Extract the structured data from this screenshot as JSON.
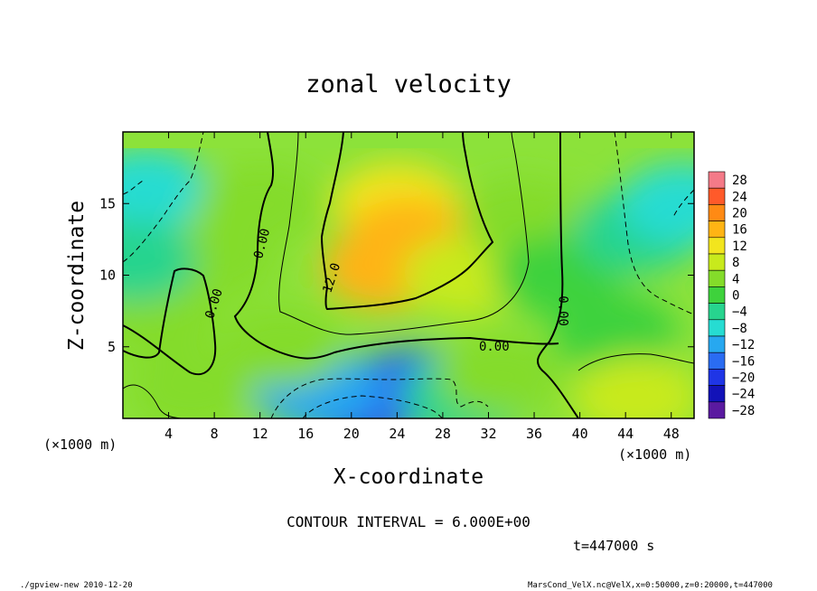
{
  "chart_data": {
    "type": "heatmap",
    "title": "zonal velocity",
    "xlabel": "X-coordinate",
    "ylabel": "Z-coordinate",
    "xunit_left": "(×1000 m)",
    "xunit_right": "(×1000 m)",
    "xlim": [
      0,
      50
    ],
    "ylim": [
      0,
      20
    ],
    "xticks": [
      4,
      8,
      12,
      16,
      20,
      24,
      28,
      32,
      36,
      40,
      44,
      48
    ],
    "yticks": [
      5,
      10,
      15
    ],
    "colorbar": {
      "levels": [
        28,
        24,
        20,
        16,
        12,
        8,
        4,
        0,
        -4,
        -8,
        -12,
        -16,
        -20,
        -24,
        -28
      ],
      "colors": [
        "#f47a88",
        "#ff5a2a",
        "#ff8a14",
        "#ffb414",
        "#f2e51e",
        "#c8ea1c",
        "#84dc2a",
        "#3ed23c",
        "#27d48e",
        "#26dcd2",
        "#27a8f0",
        "#2a6cf2",
        "#1f35e6",
        "#1212b8",
        "#5a1aa0"
      ]
    },
    "contour_labels": [
      "0.00",
      "0.00",
      "0.00",
      "12.0",
      "0.00"
    ],
    "contour_interval": "CONTOUR INTERVAL = 6.000E+00",
    "time": "t=447000 s",
    "footer_left": "./gpview-new  2010-12-20",
    "footer_right": "MarsCond_VelX.nc@VelX,x=0:50000,z=0:20000,t=447000",
    "field_centers": [
      {
        "x": 8,
        "z": 11,
        "v": 5
      },
      {
        "x": 3,
        "z": 7,
        "v": 3
      },
      {
        "x": 2,
        "z": 16,
        "v": -7
      },
      {
        "x": 1,
        "z": 11,
        "v": -6
      },
      {
        "x": 12,
        "z": 15,
        "v": 3
      },
      {
        "x": 24,
        "z": 15,
        "v": 13
      },
      {
        "x": 23,
        "z": 10.5,
        "v": 17
      },
      {
        "x": 25,
        "z": 12.5,
        "v": 14
      },
      {
        "x": 30,
        "z": 10,
        "v": 9
      },
      {
        "x": 35,
        "z": 14,
        "v": 3
      },
      {
        "x": 21,
        "z": 1,
        "v": -22
      },
      {
        "x": 25,
        "z": 2,
        "v": -15
      },
      {
        "x": 17,
        "z": 2,
        "v": -12
      },
      {
        "x": 30,
        "z": 1.5,
        "v": -6
      },
      {
        "x": 14,
        "z": 5,
        "v": 4
      },
      {
        "x": 33,
        "z": 3,
        "v": 2
      },
      {
        "x": 38,
        "z": 10,
        "v": 0
      },
      {
        "x": 45,
        "z": 13,
        "v": -6
      },
      {
        "x": 49,
        "z": 15,
        "v": -9
      },
      {
        "x": 43,
        "z": 6,
        "v": 0
      },
      {
        "x": 45,
        "z": 1.5,
        "v": 8
      },
      {
        "x": 6,
        "z": 2,
        "v": 4
      }
    ]
  }
}
